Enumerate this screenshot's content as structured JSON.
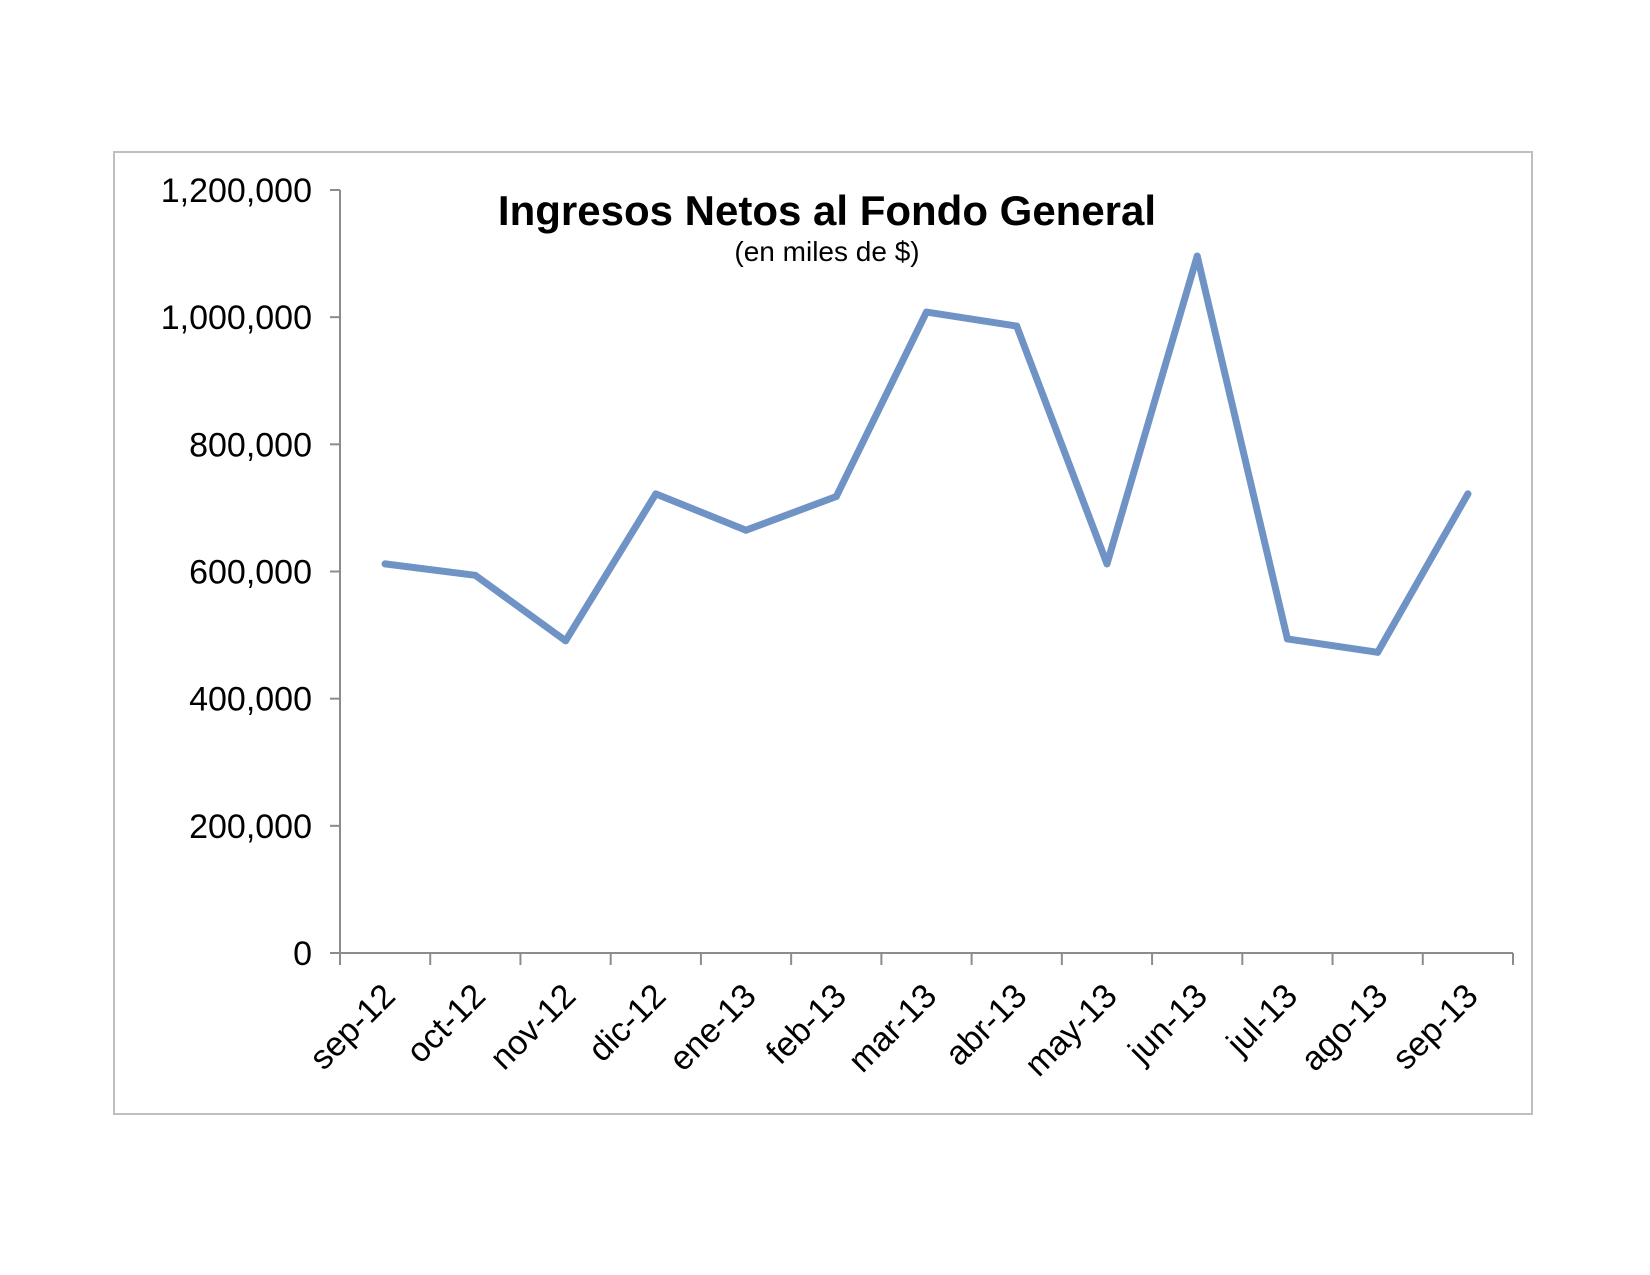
{
  "chart_data": {
    "type": "line",
    "title": "Ingresos Netos al Fondo General",
    "subtitle": "(en miles de $)",
    "xlabel": "",
    "ylabel": "",
    "categories": [
      "sep-12",
      "oct-12",
      "nov-12",
      "dic-12",
      "ene-13",
      "feb-13",
      "mar-13",
      "abr-13",
      "may-13",
      "jun-13",
      "jul-13",
      "ago-13",
      "sep-13"
    ],
    "series": [
      {
        "values": [
          612000,
          594000,
          491000,
          722000,
          665000,
          718000,
          1008000,
          986000,
          612000,
          1096000,
          494000,
          473000,
          722000
        ]
      }
    ],
    "ylim": [
      0,
      1200000
    ],
    "yticks": [
      0,
      200000,
      400000,
      600000,
      800000,
      1000000,
      1200000
    ],
    "ytick_labels": [
      "0",
      "200,000",
      "400,000",
      "600,000",
      "800,000",
      "1,000,000",
      "1,200,000"
    ],
    "grid": false,
    "legend": "none",
    "line_color": "#6f93c5",
    "axis_color": "#8c8c8c"
  }
}
